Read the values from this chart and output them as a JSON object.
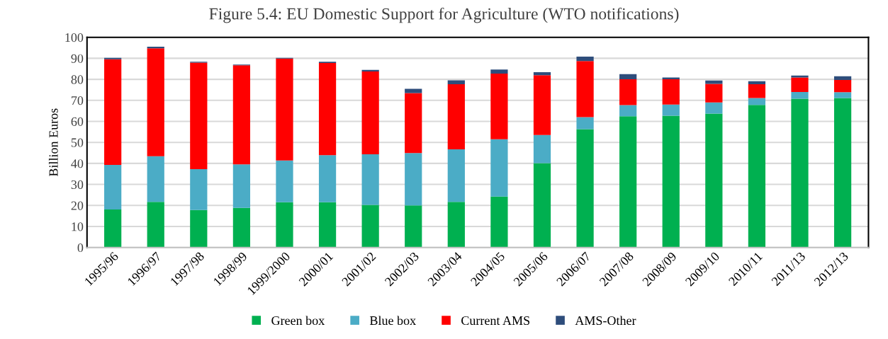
{
  "chart_data": {
    "type": "bar",
    "title": "Figure 5.4: EU Domestic Support for Agriculture (WTO notifications)",
    "ylabel": "Billion Euros",
    "categories": [
      "1995/96",
      "1996/97",
      "1997/98",
      "1998/99",
      "1999/2000",
      "2000/01",
      "2001/02",
      "2002/03",
      "2003/04",
      "2004/05",
      "2005/06",
      "2006/07",
      "2007/08",
      "2008/09",
      "2009/10",
      "2010/11",
      "2011/13",
      "2012/13"
    ],
    "stacked": true,
    "ylim": [
      0,
      100
    ],
    "yticks": [
      0,
      10,
      20,
      30,
      40,
      50,
      60,
      70,
      80,
      90,
      100
    ],
    "grid": "y",
    "legend": "bottom",
    "series": [
      {
        "name": "Green box",
        "color": "#00b050",
        "values": [
          18.1,
          21.7,
          17.8,
          18.8,
          21.5,
          21.5,
          20.3,
          20.0,
          21.7,
          24.2,
          40.1,
          56.3,
          62.4,
          62.7,
          63.7,
          67.8,
          70.8,
          71.1
        ]
      },
      {
        "name": "Blue box",
        "color": "#4bacc6",
        "values": [
          21.2,
          21.7,
          19.5,
          20.7,
          19.9,
          22.4,
          24.0,
          24.9,
          25.0,
          27.3,
          13.4,
          5.7,
          5.3,
          5.3,
          5.3,
          3.3,
          3.2,
          2.8
        ]
      },
      {
        "name": "Current AMS",
        "color": "#ff0000",
        "values": [
          50.2,
          51.4,
          50.6,
          47.2,
          48.5,
          43.9,
          39.4,
          28.6,
          31.0,
          31.2,
          28.5,
          26.7,
          12.3,
          12.0,
          8.8,
          6.6,
          6.9,
          5.8
        ]
      },
      {
        "name": "AMS-Other",
        "color": "#2e4d7b",
        "values": [
          0.7,
          0.7,
          0.5,
          0.3,
          0.3,
          0.6,
          0.8,
          2.0,
          1.8,
          2.0,
          1.4,
          2.1,
          2.5,
          0.9,
          1.6,
          1.4,
          0.9,
          1.8
        ]
      }
    ]
  }
}
